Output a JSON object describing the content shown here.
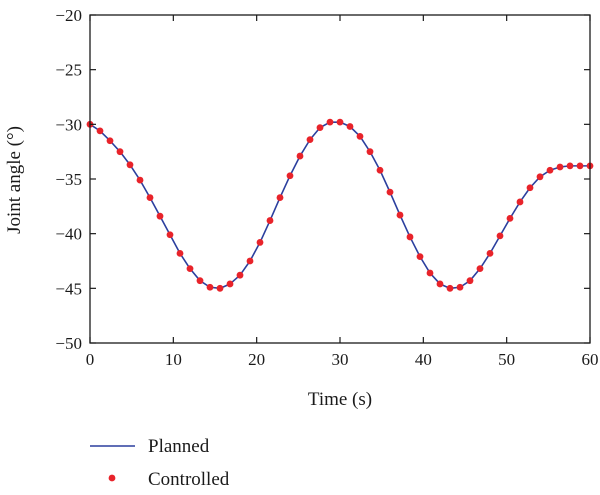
{
  "chart_data": {
    "type": "line",
    "xlabel": "Time (s)",
    "ylabel": "Joint angle (°)",
    "xlim": [
      0,
      60
    ],
    "ylim": [
      -50,
      -20
    ],
    "xticks": [
      0,
      10,
      20,
      30,
      40,
      50,
      60
    ],
    "yticks": [
      -20,
      -25,
      -30,
      -35,
      -40,
      -45,
      -50
    ],
    "xtick_labels": [
      "0",
      "10",
      "20",
      "30",
      "40",
      "50",
      "60"
    ],
    "ytick_labels": [
      "−20",
      "−25",
      "−30",
      "−35",
      "−40",
      "−45",
      "−50"
    ],
    "grid": false,
    "legend_position": "bottom-left, below plot",
    "series": [
      {
        "name": "Planned",
        "style": "line",
        "color": "#2b3f9e",
        "x": [
          0,
          1.2,
          2.4,
          3.6,
          4.8,
          6,
          7.2,
          8.4,
          9.6,
          10.8,
          12,
          13.2,
          14.4,
          15.6,
          16.8,
          18,
          19.2,
          20.4,
          21.6,
          22.8,
          24,
          25.2,
          26.4,
          27.6,
          28.8,
          30,
          31.2,
          32.4,
          33.6,
          34.8,
          36,
          37.2,
          38.4,
          39.6,
          40.8,
          42,
          43.2,
          44.4,
          45.6,
          46.8,
          48,
          49.2,
          50.4,
          51.6,
          52.8,
          54,
          55.2,
          56.4,
          57.6,
          58.8,
          60
        ],
        "y": [
          -30.0,
          -30.6,
          -31.5,
          -32.5,
          -33.7,
          -35.1,
          -36.7,
          -38.4,
          -40.1,
          -41.8,
          -43.2,
          -44.3,
          -44.9,
          -45.0,
          -44.6,
          -43.8,
          -42.5,
          -40.8,
          -38.8,
          -36.7,
          -34.7,
          -32.9,
          -31.4,
          -30.3,
          -29.8,
          -29.8,
          -30.2,
          -31.1,
          -32.5,
          -34.2,
          -36.2,
          -38.3,
          -40.3,
          -42.1,
          -43.6,
          -44.6,
          -45.0,
          -44.9,
          -44.3,
          -43.2,
          -41.8,
          -40.2,
          -38.6,
          -37.1,
          -35.8,
          -34.8,
          -34.2,
          -33.9,
          -33.8,
          -33.8,
          -33.8
        ]
      },
      {
        "name": "Controlled",
        "style": "markers",
        "color": "#e8232a",
        "x": [
          0,
          1.2,
          2.4,
          3.6,
          4.8,
          6,
          7.2,
          8.4,
          9.6,
          10.8,
          12,
          13.2,
          14.4,
          15.6,
          16.8,
          18,
          19.2,
          20.4,
          21.6,
          22.8,
          24,
          25.2,
          26.4,
          27.6,
          28.8,
          30,
          31.2,
          32.4,
          33.6,
          34.8,
          36,
          37.2,
          38.4,
          39.6,
          40.8,
          42,
          43.2,
          44.4,
          45.6,
          46.8,
          48,
          49.2,
          50.4,
          51.6,
          52.8,
          54,
          55.2,
          56.4,
          57.6,
          58.8,
          60
        ],
        "y": [
          -30.0,
          -30.6,
          -31.5,
          -32.5,
          -33.7,
          -35.1,
          -36.7,
          -38.4,
          -40.1,
          -41.8,
          -43.2,
          -44.3,
          -44.9,
          -45.0,
          -44.6,
          -43.8,
          -42.5,
          -40.8,
          -38.8,
          -36.7,
          -34.7,
          -32.9,
          -31.4,
          -30.3,
          -29.8,
          -29.8,
          -30.2,
          -31.1,
          -32.5,
          -34.2,
          -36.2,
          -38.3,
          -40.3,
          -42.1,
          -43.6,
          -44.6,
          -45.0,
          -44.9,
          -44.3,
          -43.2,
          -41.8,
          -40.2,
          -38.6,
          -37.1,
          -35.8,
          -34.8,
          -34.2,
          -33.9,
          -33.8,
          -33.8,
          -33.8
        ]
      }
    ]
  },
  "legend": {
    "planned_label": "Planned",
    "controlled_label": "Controlled"
  }
}
